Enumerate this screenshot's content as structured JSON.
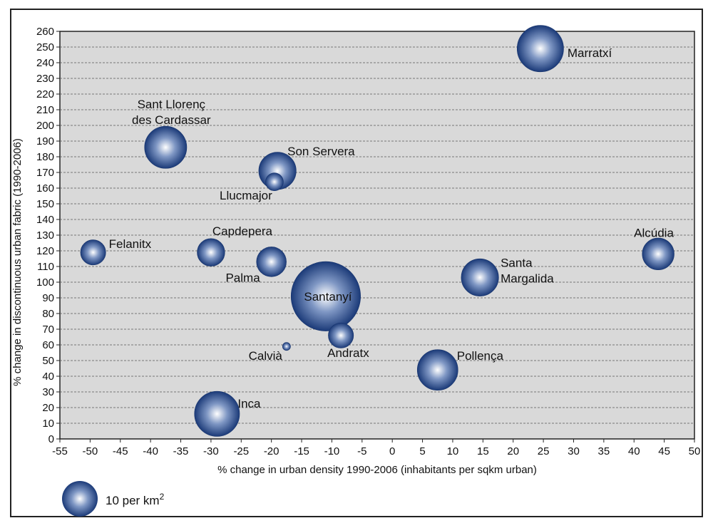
{
  "chart_data": {
    "type": "scatter",
    "subtype": "bubble",
    "xlabel": "% change in urban density 1990-2006 (inhabitants per sqkm urban)",
    "ylabel": "% change in discontinuous urban fabric (1990-2006)",
    "xlim": [
      -55,
      50
    ],
    "ylim": [
      0,
      260
    ],
    "x_ticks": [
      -55,
      -50,
      -45,
      -40,
      -35,
      -30,
      -25,
      -20,
      -15,
      -10,
      -5,
      0,
      5,
      10,
      15,
      20,
      25,
      30,
      35,
      40,
      45,
      50
    ],
    "y_ticks": [
      0,
      10,
      20,
      30,
      40,
      50,
      60,
      70,
      80,
      90,
      100,
      110,
      120,
      130,
      140,
      150,
      160,
      170,
      180,
      190,
      200,
      210,
      220,
      230,
      240,
      250,
      260
    ],
    "grid": "horizontal dashed",
    "colors": {
      "bubble_center": "#ffffff",
      "bubble_mid": "#7f97c4",
      "bubble_edge": "#1b3a78",
      "plot_bg": "#d9d9d9"
    },
    "series": [
      {
        "name": "Marratxí",
        "label": [
          "Marratxí"
        ],
        "x": 24.5,
        "y": 249,
        "size": 17
      },
      {
        "name": "Sant Llorenç des Cardassar",
        "label": [
          "Sant Llorenç",
          "des Cardassar"
        ],
        "x": -37.5,
        "y": 186,
        "size": 14
      },
      {
        "name": "Son Servera",
        "label": [
          "Son Servera"
        ],
        "x": -19,
        "y": 171,
        "size": 11
      },
      {
        "name": "Llucmajor",
        "label": [
          "Llucmajor"
        ],
        "x": -19.5,
        "y": 164,
        "size": 2.5
      },
      {
        "name": "Felanitx",
        "label": [
          "Felanitx"
        ],
        "x": -49.5,
        "y": 119,
        "size": 5
      },
      {
        "name": "Capdepera",
        "label": [
          "Capdepera"
        ],
        "x": -30,
        "y": 119,
        "size": 6
      },
      {
        "name": "Palma",
        "label": [
          "Palma"
        ],
        "x": -20,
        "y": 113,
        "size": 7
      },
      {
        "name": "Alcúdia",
        "label": [
          "Alcúdia"
        ],
        "x": 44,
        "y": 118,
        "size": 8
      },
      {
        "name": "Santa Margalida",
        "label": [
          "Santa",
          "Margalida"
        ],
        "x": 14.5,
        "y": 103,
        "size": 11
      },
      {
        "name": "Santanyí",
        "label": [
          "Santanyí"
        ],
        "x": -11,
        "y": 91,
        "size": 38
      },
      {
        "name": "Andratx",
        "label": [
          "Andratx"
        ],
        "x": -8.5,
        "y": 66,
        "size": 5
      },
      {
        "name": "Calvià",
        "label": [
          "Calvià"
        ],
        "x": -17.5,
        "y": 59,
        "size": 0.5
      },
      {
        "name": "Pollença",
        "label": [
          "Pollença"
        ],
        "x": 7.5,
        "y": 44,
        "size": 13
      },
      {
        "name": "Inca",
        "label": [
          "Inca"
        ],
        "x": -29,
        "y": 16,
        "size": 16
      }
    ],
    "legend": {
      "label": "10 per km",
      "superscript": "2",
      "size": 10,
      "position": "bottom-left"
    }
  }
}
